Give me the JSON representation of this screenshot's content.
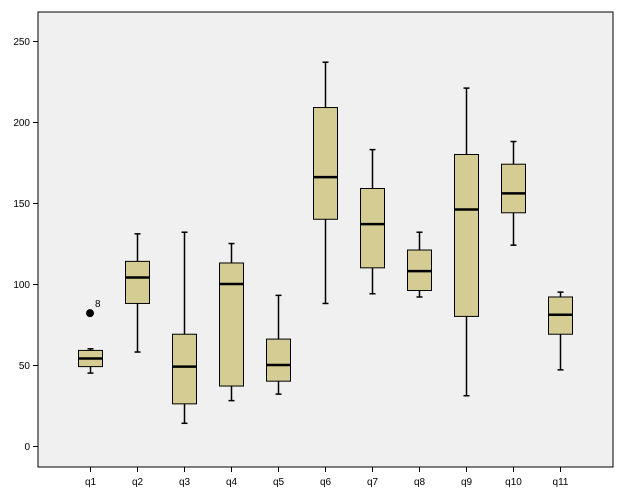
{
  "chart_data": {
    "type": "boxplot",
    "categories": [
      "q1",
      "q2",
      "q3",
      "q4",
      "q5",
      "q6",
      "q7",
      "q8",
      "q9",
      "q10",
      "q11"
    ],
    "ylim": [
      -13,
      268
    ],
    "yticks": [
      0,
      50,
      100,
      150,
      200,
      250
    ],
    "grid": false,
    "boxes": [
      {
        "label": "q1",
        "min": 45,
        "q1": 49,
        "median": 54,
        "q3": 59,
        "max": 60
      },
      {
        "label": "q2",
        "min": 58,
        "q1": 88,
        "median": 104,
        "q3": 114,
        "max": 131
      },
      {
        "label": "q3",
        "min": 14,
        "q1": 26,
        "median": 49,
        "q3": 69,
        "max": 132
      },
      {
        "label": "q4",
        "min": 28,
        "q1": 37,
        "median": 100,
        "q3": 113,
        "max": 125
      },
      {
        "label": "q5",
        "min": 32,
        "q1": 40,
        "median": 50,
        "q3": 66,
        "max": 93
      },
      {
        "label": "q6",
        "min": 88,
        "q1": 140,
        "median": 166,
        "q3": 209,
        "max": 237
      },
      {
        "label": "q7",
        "min": 94,
        "q1": 110,
        "median": 137,
        "q3": 159,
        "max": 183
      },
      {
        "label": "q8",
        "min": 92,
        "q1": 96,
        "median": 108,
        "q3": 121,
        "max": 132
      },
      {
        "label": "q9",
        "min": 31,
        "q1": 80,
        "median": 146,
        "q3": 180,
        "max": 221
      },
      {
        "label": "q10",
        "min": 124,
        "q1": 144,
        "median": 156,
        "q3": 174,
        "max": 188
      },
      {
        "label": "q11",
        "min": 47,
        "q1": 69,
        "median": 81,
        "q3": 92,
        "max": 95
      }
    ],
    "outliers": [
      {
        "category": "q1",
        "value": 82,
        "label": "8"
      }
    ]
  },
  "colors": {
    "plot_background": "#f0f0f0",
    "box_fill": "#d4cc93",
    "box_stroke": "#000000",
    "axis": "#000000"
  }
}
